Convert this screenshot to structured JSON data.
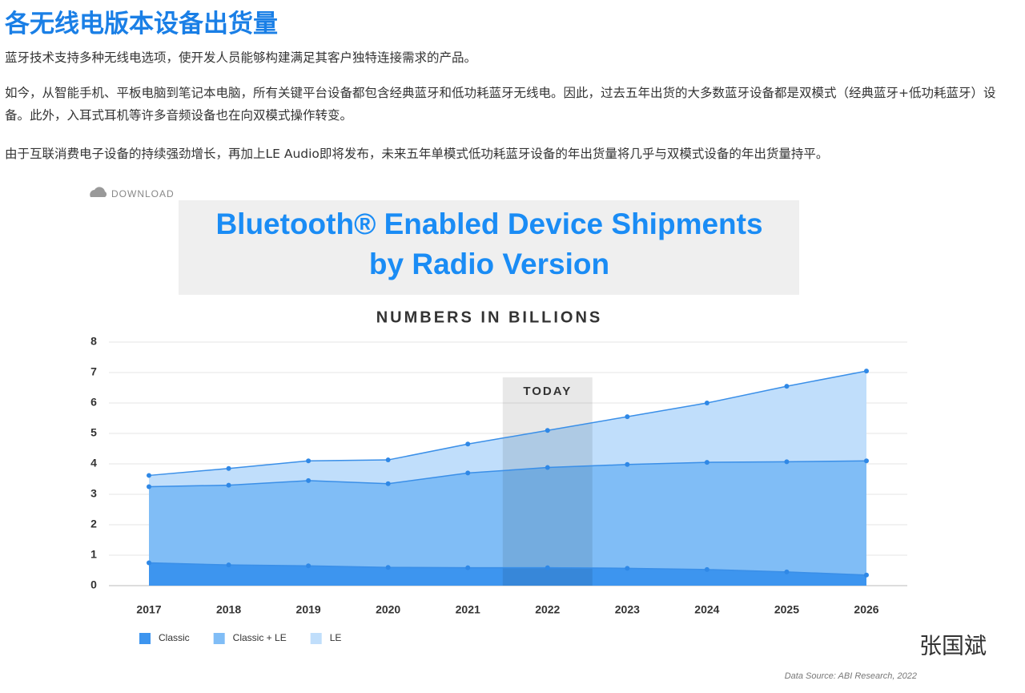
{
  "header": {
    "title": "各无线电版本设备出货量"
  },
  "paragraphs": [
    "蓝牙技术支持多种无线电选项，使开发人员能够构建满足其客户独特连接需求的产品。",
    "如今，从智能手机、平板电脑到笔记本电脑，所有关键平台设备都包含经典蓝牙和低功耗蓝牙无线电。因此，过去五年出货的大多数蓝牙设备都是双模式（经典蓝牙+低功耗蓝牙）设备。此外，入耳式耳机等许多音频设备也在向双模式操作转变。",
    "由于互联消费电子设备的持续强劲增长，再加上LE Audio即将发布，未来五年单模式低功耗蓝牙设备的年出货量将几乎与双模式设备的年出货量持平。"
  ],
  "download_label": "DOWNLOAD",
  "watermark": "张国斌",
  "chart_data": {
    "type": "stacked-area",
    "title": [
      "Bluetooth® Enabled Device Shipments",
      "by Radio Version"
    ],
    "subtitle": "NUMBERS IN BILLIONS",
    "categories": [
      "2017",
      "2018",
      "2019",
      "2020",
      "2021",
      "2022",
      "2023",
      "2024",
      "2025",
      "2026"
    ],
    "series": [
      {
        "name": "Classic",
        "color": "#3d95ef",
        "values": [
          0.75,
          0.68,
          0.65,
          0.6,
          0.59,
          0.59,
          0.57,
          0.53,
          0.45,
          0.35
        ]
      },
      {
        "name": "Classic + LE",
        "color": "#80bdf6",
        "values": [
          2.5,
          2.62,
          2.8,
          2.75,
          3.11,
          3.29,
          3.41,
          3.52,
          3.62,
          3.75
        ]
      },
      {
        "name": "LE",
        "color": "#c0defb",
        "values": [
          0.37,
          0.55,
          0.65,
          0.78,
          0.95,
          1.22,
          1.57,
          1.95,
          2.48,
          2.95
        ]
      }
    ],
    "ylim": [
      0,
      8
    ],
    "yticks": [
      0,
      1,
      2,
      3,
      4,
      5,
      6,
      7,
      8
    ],
    "grid": true,
    "annotations": [
      {
        "text": "TODAY",
        "category": "2022"
      }
    ],
    "source": "Data Source: ABI Research, 2022"
  }
}
